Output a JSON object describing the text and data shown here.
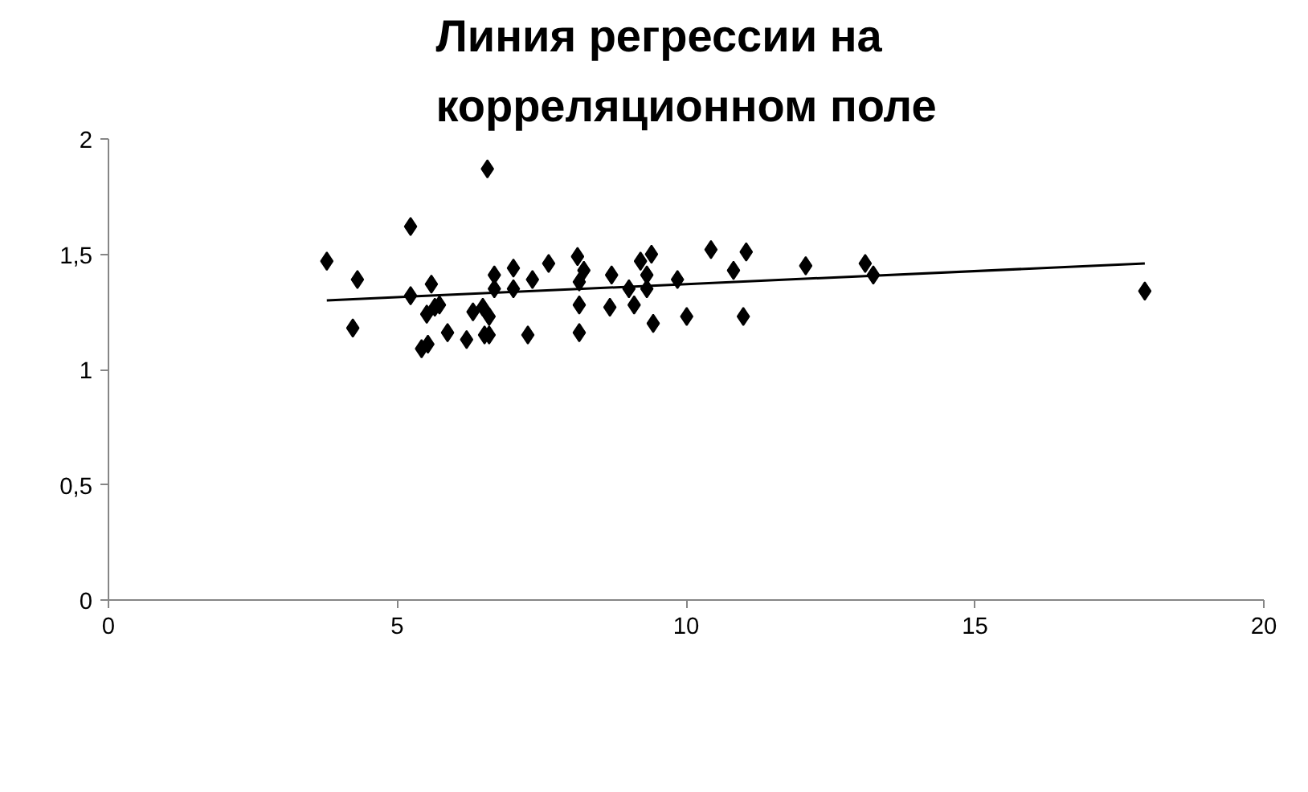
{
  "chart_data": {
    "type": "scatter",
    "title": "Линия регрессии на\nкорреляционном поле",
    "xlim": [
      0,
      20
    ],
    "xticks": [
      0,
      5,
      10,
      15,
      20
    ],
    "ylim": [
      0,
      2
    ],
    "yticks": [
      0,
      {
        "value": 0.5,
        "label": "0,5"
      },
      1,
      {
        "value": 1.5,
        "label": "1,5"
      },
      2
    ],
    "grid": false,
    "series": [
      {
        "marker": "diamond",
        "color": "#000000",
        "x": [
          3.78,
          4.31,
          4.23,
          5.23,
          5.23,
          5.59,
          5.42,
          5.53,
          5.51,
          5.65,
          5.73,
          5.87,
          6.2,
          6.31,
          6.56,
          6.48,
          6.59,
          6.51,
          6.59,
          6.68,
          6.68,
          7.01,
          7.01,
          7.34,
          7.26,
          7.62,
          8.12,
          8.23,
          8.15,
          8.15,
          8.15,
          8.71,
          8.68,
          9.01,
          9.1,
          9.21,
          9.4,
          9.32,
          9.32,
          9.43,
          9.85,
          10.01,
          10.43,
          10.82,
          11.04,
          10.99,
          12.07,
          13.1,
          13.24,
          17.94
        ],
        "values": [
          1.47,
          1.39,
          1.18,
          1.62,
          1.32,
          1.37,
          1.09,
          1.11,
          1.24,
          1.27,
          1.28,
          1.16,
          1.13,
          1.25,
          1.87,
          1.27,
          1.23,
          1.15,
          1.15,
          1.41,
          1.35,
          1.44,
          1.35,
          1.39,
          1.15,
          1.46,
          1.49,
          1.43,
          1.38,
          1.28,
          1.16,
          1.41,
          1.27,
          1.35,
          1.28,
          1.47,
          1.5,
          1.41,
          1.35,
          1.2,
          1.39,
          1.23,
          1.52,
          1.43,
          1.51,
          1.23,
          1.45,
          1.46,
          1.41,
          1.34
        ]
      },
      {
        "type": "line",
        "color": "#000000",
        "x": [
          3.78,
          17.94
        ],
        "values": [
          1.3,
          1.46
        ]
      }
    ]
  }
}
